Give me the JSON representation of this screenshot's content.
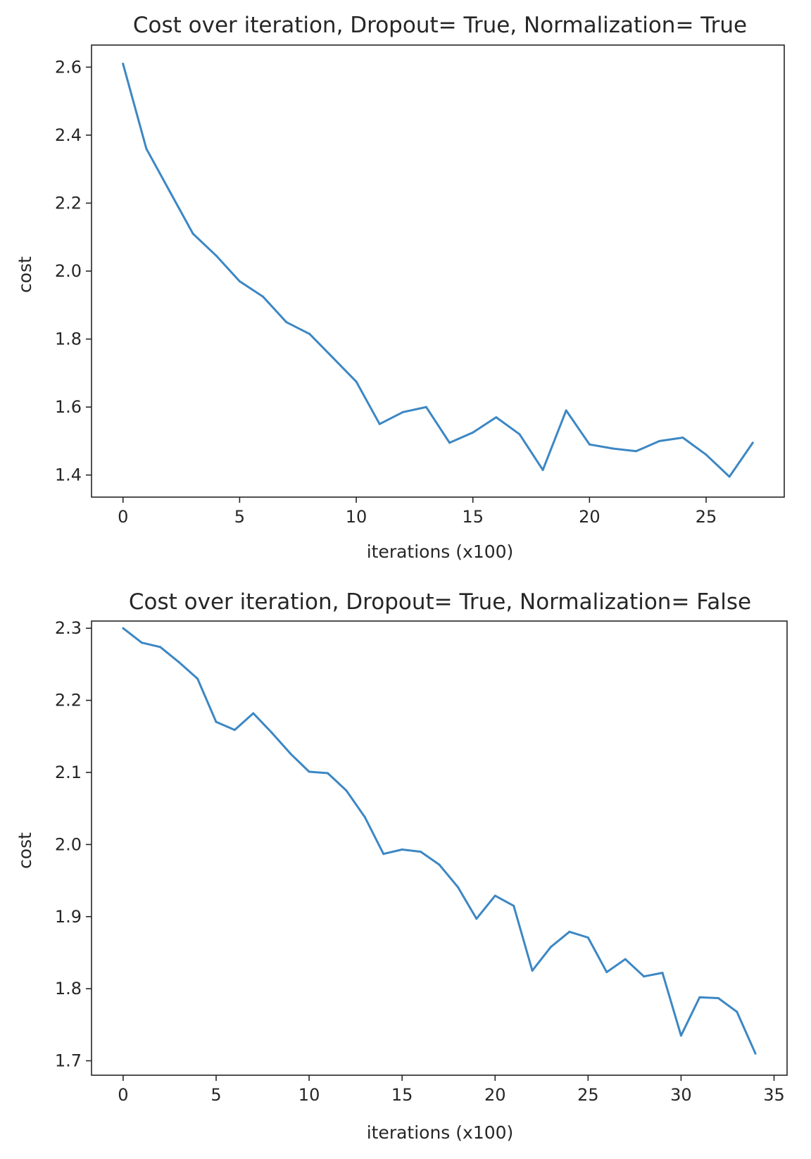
{
  "chart_data": [
    {
      "type": "line",
      "title": "Cost over iteration, Dropout= True, Normalization= True",
      "xlabel": "iterations (x100)",
      "ylabel": "cost",
      "xlim": [
        -1.35,
        28.35
      ],
      "ylim": [
        1.335,
        2.665
      ],
      "xticks": [
        0,
        5,
        10,
        15,
        20,
        25
      ],
      "yticks": [
        1.4,
        1.6,
        1.8,
        2.0,
        2.2,
        2.4,
        2.6
      ],
      "ytick_labels": [
        "1.4",
        "1.6",
        "1.8",
        "2.0",
        "2.2",
        "2.4",
        "2.6"
      ],
      "grid": false,
      "color": "#3c87c4",
      "x": [
        0,
        1,
        2,
        3,
        4,
        5,
        6,
        7,
        8,
        9,
        10,
        11,
        12,
        13,
        14,
        15,
        16,
        17,
        18,
        19,
        20,
        21,
        22,
        23,
        24,
        25,
        26,
        27
      ],
      "values": [
        2.61,
        2.36,
        2.235,
        2.11,
        2.045,
        1.97,
        1.925,
        1.85,
        1.815,
        1.745,
        1.675,
        1.55,
        1.585,
        1.6,
        1.495,
        1.525,
        1.57,
        1.52,
        1.415,
        1.59,
        1.49,
        1.478,
        1.47,
        1.5,
        1.51,
        1.46,
        1.395,
        1.495
      ]
    },
    {
      "type": "line",
      "title": "Cost over iteration, Dropout= True, Normalization= False",
      "xlabel": "iterations (x100)",
      "ylabel": "cost",
      "xlim": [
        -1.7,
        35.7
      ],
      "ylim": [
        1.68,
        2.31
      ],
      "xticks": [
        0,
        5,
        10,
        15,
        20,
        25,
        30,
        35
      ],
      "yticks": [
        1.7,
        1.8,
        1.9,
        2.0,
        2.1,
        2.2,
        2.3
      ],
      "ytick_labels": [
        "1.7",
        "1.8",
        "1.9",
        "2.0",
        "2.1",
        "2.2",
        "2.3"
      ],
      "grid": false,
      "color": "#3c87c4",
      "x": [
        0,
        1,
        2,
        3,
        4,
        5,
        6,
        7,
        8,
        9,
        10,
        11,
        12,
        13,
        14,
        15,
        16,
        17,
        18,
        19,
        20,
        21,
        22,
        23,
        24,
        25,
        26,
        27,
        28,
        29,
        30,
        31,
        32,
        33,
        34
      ],
      "values": [
        2.3,
        2.28,
        2.274,
        2.253,
        2.23,
        2.17,
        2.159,
        2.182,
        2.155,
        2.126,
        2.101,
        2.099,
        2.075,
        2.038,
        1.987,
        1.993,
        1.99,
        1.972,
        1.941,
        1.897,
        1.929,
        1.915,
        1.825,
        1.858,
        1.879,
        1.871,
        1.823,
        1.841,
        1.817,
        1.822,
        1.735,
        1.788,
        1.787,
        1.768,
        1.71
      ]
    }
  ]
}
